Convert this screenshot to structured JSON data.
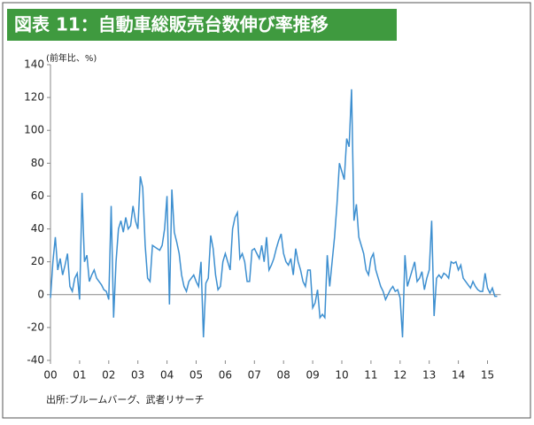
{
  "chart_data": {
    "type": "line",
    "title": "図表 11：自動車総販売台数伸び率推移",
    "y_label": "(前年比、%)",
    "source": "出所:ブルームバーグ、武者リサーチ",
    "categories": [
      "00",
      null,
      null,
      null,
      null,
      null,
      null,
      null,
      null,
      null,
      null,
      null,
      "01",
      null,
      null,
      null,
      null,
      null,
      null,
      null,
      null,
      null,
      null,
      null,
      "02",
      null,
      null,
      null,
      null,
      null,
      null,
      null,
      null,
      null,
      null,
      null,
      "03",
      null,
      null,
      null,
      null,
      null,
      null,
      null,
      null,
      null,
      null,
      null,
      "04",
      null,
      null,
      null,
      null,
      null,
      null,
      null,
      null,
      null,
      null,
      null,
      "05",
      null,
      null,
      null,
      null,
      null,
      null,
      null,
      null,
      null,
      null,
      null,
      "06",
      null,
      null,
      null,
      null,
      null,
      null,
      null,
      null,
      null,
      null,
      null,
      "07",
      null,
      null,
      null,
      null,
      null,
      null,
      null,
      null,
      null,
      null,
      null,
      "08",
      null,
      null,
      null,
      null,
      null,
      null,
      null,
      null,
      null,
      null,
      null,
      "09",
      null,
      null,
      null,
      null,
      null,
      null,
      null,
      null,
      null,
      null,
      null,
      "10",
      null,
      null,
      null,
      null,
      null,
      null,
      null,
      null,
      null,
      null,
      null,
      "11",
      null,
      null,
      null,
      null,
      null,
      null,
      null,
      null,
      null,
      null,
      null,
      "12",
      null,
      null,
      null,
      null,
      null,
      null,
      null,
      null,
      null,
      null,
      null,
      "13",
      null,
      null,
      null,
      null,
      null,
      null,
      null,
      null,
      null,
      null,
      null,
      "14",
      null,
      null,
      null,
      null,
      null,
      null,
      null,
      null,
      null,
      null,
      null,
      "15",
      null,
      null,
      null,
      null
    ],
    "series": [
      {
        "color": "#3d8fd0",
        "values": [
          -2,
          20,
          35,
          15,
          22,
          12,
          18,
          25,
          5,
          2,
          10,
          13,
          -3,
          62,
          20,
          24,
          8,
          12,
          15,
          10,
          8,
          6,
          3,
          2,
          -3,
          54,
          -14,
          20,
          40,
          45,
          38,
          47,
          40,
          42,
          54,
          45,
          40,
          72,
          65,
          30,
          10,
          8,
          30,
          29,
          28,
          27,
          30,
          40,
          60,
          -6,
          64,
          38,
          32,
          25,
          12,
          5,
          2,
          8,
          10,
          12,
          8,
          5,
          20,
          -26,
          7,
          10,
          36,
          28,
          12,
          3,
          5,
          20,
          25,
          20,
          15,
          40,
          47,
          50,
          22,
          25,
          20,
          8,
          8,
          27,
          28,
          25,
          22,
          30,
          20,
          35,
          15,
          18,
          22,
          28,
          33,
          37,
          25,
          20,
          18,
          22,
          12,
          28,
          20,
          15,
          8,
          5,
          15,
          15,
          -8,
          -5,
          3,
          -14,
          -12,
          -14,
          24,
          5,
          20,
          35,
          55,
          80,
          75,
          70,
          95,
          90,
          125,
          45,
          55,
          35,
          30,
          25,
          15,
          12,
          22,
          25,
          15,
          10,
          5,
          2,
          -3,
          0,
          3,
          5,
          2,
          3,
          -2,
          -26,
          24,
          5,
          10,
          15,
          20,
          8,
          10,
          14,
          3,
          10,
          15,
          45,
          -13,
          10,
          12,
          10,
          13,
          12,
          10,
          20,
          19,
          20,
          15,
          18,
          10,
          8,
          6,
          4,
          8,
          5,
          3,
          2,
          2,
          13,
          4,
          1,
          4,
          -1,
          -1
        ]
      }
    ],
    "ylim": [
      -40,
      140
    ],
    "yticks": [
      -40,
      -20,
      0,
      20,
      40,
      60,
      80,
      100,
      120,
      140
    ]
  }
}
